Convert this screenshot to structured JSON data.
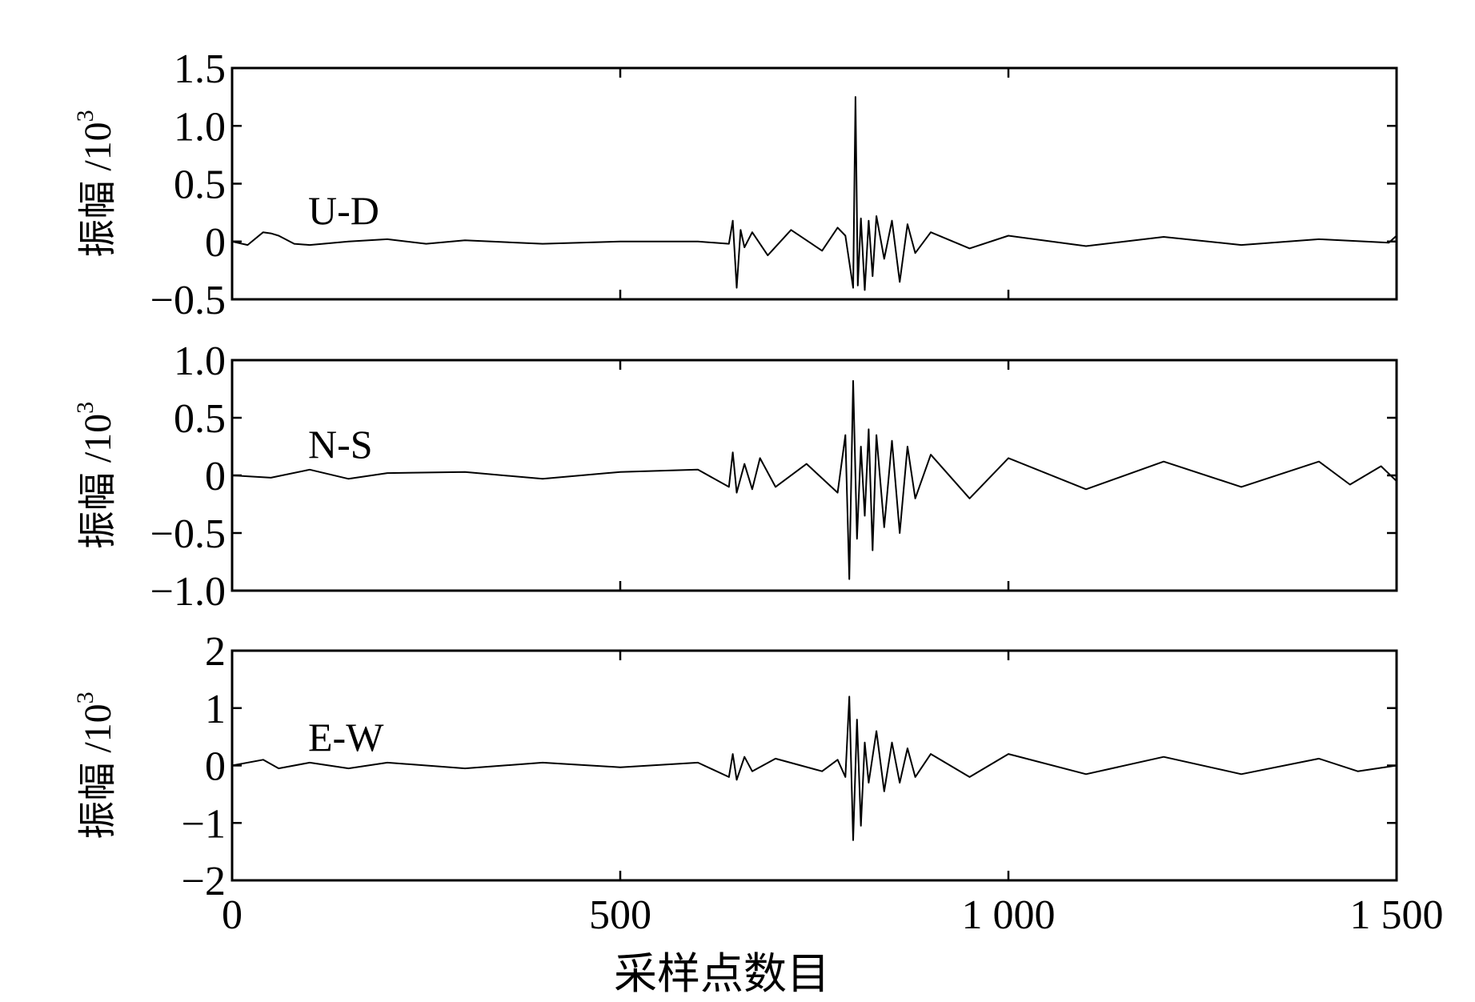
{
  "chart_data": [
    {
      "type": "line",
      "component": "U-D",
      "ylabel": "振幅 /10",
      "ylabel_exponent": "3",
      "xlim": [
        0,
        1500
      ],
      "ylim": [
        -0.5,
        1.5
      ],
      "yticks": [
        -0.5,
        0,
        0.5,
        1.0,
        1.5
      ],
      "ytick_labels": [
        "−0.5",
        "0",
        "0.5",
        "1.0",
        "1.5"
      ],
      "series": [
        {
          "x": [
            0,
            20,
            40,
            50,
            60,
            80,
            100,
            150,
            200,
            250,
            300,
            400,
            500,
            600,
            640,
            645,
            650,
            655,
            660,
            670,
            690,
            720,
            760,
            780,
            790,
            800,
            803,
            806,
            810,
            815,
            820,
            825,
            830,
            840,
            850,
            860,
            870,
            880,
            900,
            950,
            1000,
            1100,
            1200,
            1300,
            1400,
            1490,
            1500
          ],
          "values": [
            0,
            -0.03,
            0.08,
            0.07,
            0.05,
            -0.02,
            -0.03,
            0.0,
            0.02,
            -0.02,
            0.01,
            -0.02,
            0.0,
            0.0,
            -0.02,
            0.18,
            -0.4,
            0.1,
            -0.05,
            0.08,
            -0.12,
            0.1,
            -0.08,
            0.12,
            0.05,
            -0.4,
            1.25,
            -0.38,
            0.2,
            -0.42,
            0.18,
            -0.3,
            0.22,
            -0.15,
            0.18,
            -0.35,
            0.15,
            -0.1,
            0.08,
            -0.06,
            0.05,
            -0.04,
            0.04,
            -0.03,
            0.02,
            -0.01,
            0.05
          ]
        }
      ]
    },
    {
      "type": "line",
      "component": "N-S",
      "ylabel": "振幅 /10",
      "ylabel_exponent": "3",
      "xlim": [
        0,
        1500
      ],
      "ylim": [
        -1.0,
        1.0
      ],
      "yticks": [
        -1.0,
        -0.5,
        0,
        0.5,
        1.0
      ],
      "ytick_labels": [
        "−1.0",
        "−0.5",
        "0",
        "0.5",
        "1.0"
      ],
      "series": [
        {
          "x": [
            0,
            50,
            100,
            150,
            200,
            300,
            400,
            500,
            600,
            640,
            645,
            650,
            660,
            670,
            680,
            700,
            740,
            780,
            790,
            795,
            800,
            805,
            810,
            815,
            820,
            825,
            830,
            840,
            850,
            860,
            870,
            880,
            900,
            950,
            1000,
            1100,
            1200,
            1300,
            1400,
            1440,
            1480,
            1500
          ],
          "values": [
            0.0,
            -0.02,
            0.05,
            -0.03,
            0.02,
            0.03,
            -0.03,
            0.03,
            0.05,
            -0.1,
            0.2,
            -0.15,
            0.1,
            -0.12,
            0.15,
            -0.1,
            0.1,
            -0.15,
            0.35,
            -0.9,
            0.82,
            -0.55,
            0.25,
            -0.35,
            0.4,
            -0.65,
            0.35,
            -0.45,
            0.3,
            -0.5,
            0.25,
            -0.2,
            0.18,
            -0.2,
            0.15,
            -0.12,
            0.12,
            -0.1,
            0.12,
            -0.08,
            0.08,
            -0.05
          ]
        }
      ]
    },
    {
      "type": "line",
      "component": "E-W",
      "ylabel": "振幅 /10",
      "ylabel_exponent": "3",
      "xlim": [
        0,
        1500
      ],
      "ylim": [
        -2,
        2
      ],
      "yticks": [
        -2,
        -1,
        0,
        1,
        2
      ],
      "ytick_labels": [
        "−2",
        "−1",
        "0",
        "1",
        "2"
      ],
      "xticks": [
        0,
        500,
        1000,
        1500
      ],
      "xtick_labels": [
        "0",
        "500",
        "1 000",
        "1 500"
      ],
      "xlabel": "采样点数目",
      "series": [
        {
          "x": [
            0,
            40,
            60,
            100,
            150,
            200,
            300,
            400,
            500,
            600,
            640,
            645,
            650,
            660,
            670,
            700,
            760,
            780,
            790,
            795,
            800,
            805,
            810,
            815,
            820,
            830,
            840,
            850,
            860,
            870,
            880,
            900,
            950,
            1000,
            1100,
            1200,
            1300,
            1400,
            1450,
            1500
          ],
          "values": [
            0.0,
            0.1,
            -0.05,
            0.05,
            -0.05,
            0.05,
            -0.05,
            0.05,
            -0.03,
            0.05,
            -0.2,
            0.2,
            -0.25,
            0.15,
            -0.1,
            0.12,
            -0.1,
            0.1,
            -0.2,
            1.2,
            -1.3,
            0.8,
            -1.05,
            0.4,
            -0.3,
            0.6,
            -0.45,
            0.4,
            -0.3,
            0.3,
            -0.2,
            0.2,
            -0.2,
            0.2,
            -0.15,
            0.15,
            -0.15,
            0.12,
            -0.1,
            0.0
          ]
        }
      ]
    }
  ]
}
